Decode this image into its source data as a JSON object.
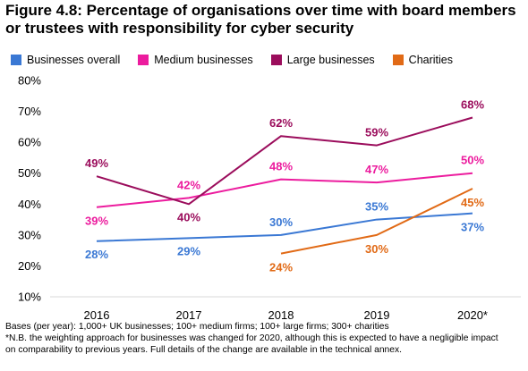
{
  "title": "Figure 4.8: Percentage of organisations over time with board members or trustees with responsibility for cyber security",
  "chart_data": {
    "type": "line",
    "categories": [
      "2016",
      "2017",
      "2018",
      "2019",
      "2020*"
    ],
    "ylim": [
      10,
      80
    ],
    "yticks": [
      "10%",
      "20%",
      "30%",
      "40%",
      "50%",
      "60%",
      "70%",
      "80%"
    ],
    "ytick_values": [
      10,
      20,
      30,
      40,
      50,
      60,
      70,
      80
    ],
    "grid": false,
    "legend_position": "top",
    "series": [
      {
        "name": "Businesses overall",
        "color": "#3a78d4",
        "values": [
          28,
          29,
          30,
          35,
          37
        ],
        "labels": [
          "28%",
          "29%",
          "30%",
          "35%",
          "37%"
        ]
      },
      {
        "name": "Medium businesses",
        "color": "#ec1c9e",
        "values": [
          39,
          42,
          48,
          47,
          50
        ],
        "labels": [
          "39%",
          "42%",
          "48%",
          "47%",
          "50%"
        ]
      },
      {
        "name": "Large businesses",
        "color": "#9b0d5c",
        "values": [
          49,
          40,
          62,
          59,
          68
        ],
        "labels": [
          "49%",
          "40%",
          "62%",
          "59%",
          "68%"
        ]
      },
      {
        "name": "Charities",
        "color": "#e16a16",
        "values": [
          null,
          null,
          24,
          30,
          45
        ],
        "labels": [
          null,
          null,
          "24%",
          "30%",
          "45%"
        ]
      }
    ]
  },
  "notes": {
    "bases": "Bases (per year): 1,000+ UK businesses; 100+ medium firms; 100+ large firms; 300+ charities",
    "nb_line1": "*N.B. the weighting approach for businesses was changed for 2020, although this is expected to have a negligible impact",
    "nb_line2": "on comparability to previous years. Full details of the change are available in the technical annex."
  }
}
